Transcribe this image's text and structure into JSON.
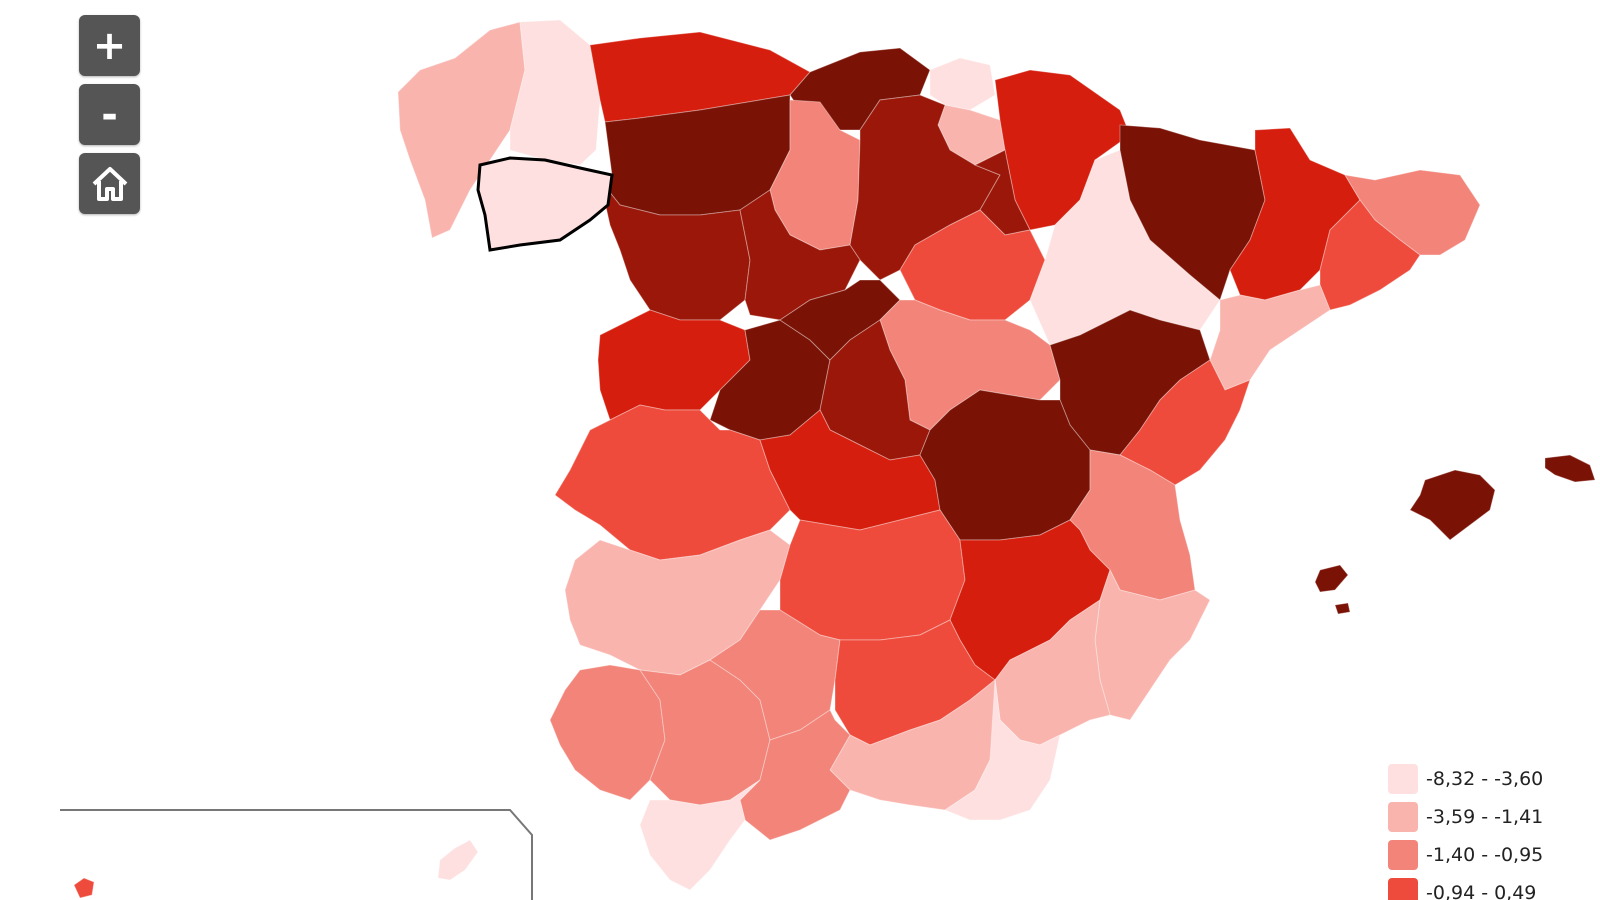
{
  "map": {
    "colors": {
      "lightest": "#fde0df",
      "light": "#f9b4ae",
      "medium": "#f28479",
      "strong": "#ee4b3c",
      "dark": "#d51e0d",
      "darker": "#9b1709",
      "darkest": "#7a1205",
      "selected_outline": "#000000",
      "inset_frame": "#777777"
    },
    "selected_region": "ourense"
  },
  "controls": {
    "zoom_in_label": "+",
    "zoom_out_label": "-",
    "home_icon": "home-icon"
  },
  "legend": {
    "items": [
      {
        "label": "-8,32 - -3,60",
        "color": "#fde0df"
      },
      {
        "label": "-3,59 - -1,41",
        "color": "#f9b4ae"
      },
      {
        "label": "-1,40 - -0,95",
        "color": "#f28479"
      },
      {
        "label": "-0,94 - 0,49",
        "color": "#ee4b3c"
      }
    ]
  }
}
